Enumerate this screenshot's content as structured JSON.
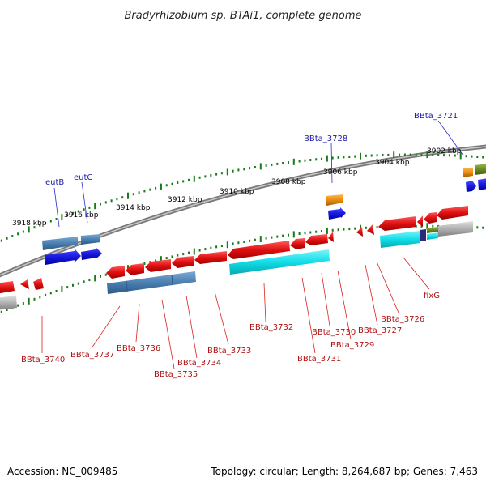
{
  "title": "Bradyrhizobium sp. BTAi1, complete genome",
  "footer": {
    "accession": "Accession: NC_009485",
    "topology": "Topology: circular; Length: 8,264,687 bp; Genes: 7,463"
  },
  "scale_labels": [
    "3918 kbp",
    "3916 kbp",
    "3914 kbp",
    "3912 kbp",
    "3910 kbp",
    "3908 kbp",
    "3906 kbp",
    "3904 kbp",
    "3902 kbp"
  ],
  "top_labels": [
    "eutB",
    "eutC",
    "BBta_3728",
    "BBta_3721"
  ],
  "bottom_labels": [
    "BBta_3740",
    "BBta_3737",
    "BBta_3736",
    "BBta_3735",
    "BBta_3734",
    "BBta_3733",
    "BBta_3732",
    "BBta_3731",
    "BBta_3730",
    "BBta_3729",
    "BBta_3727",
    "BBta_3726",
    "fixG"
  ],
  "colors": {
    "red_gene": "#e01010",
    "blue_gene": "#1a1ae0",
    "steel_gene": "#4a7fb0",
    "cyan_gene": "#10dde8",
    "orange_gene": "#e88a10",
    "olive_gene": "#6a8a20",
    "grey_gene": "#aaaaaa",
    "backbone": "#888888",
    "tick_green": "#1a7a1a",
    "label_blue": "#1a1aa6",
    "label_red": "#b01010"
  }
}
